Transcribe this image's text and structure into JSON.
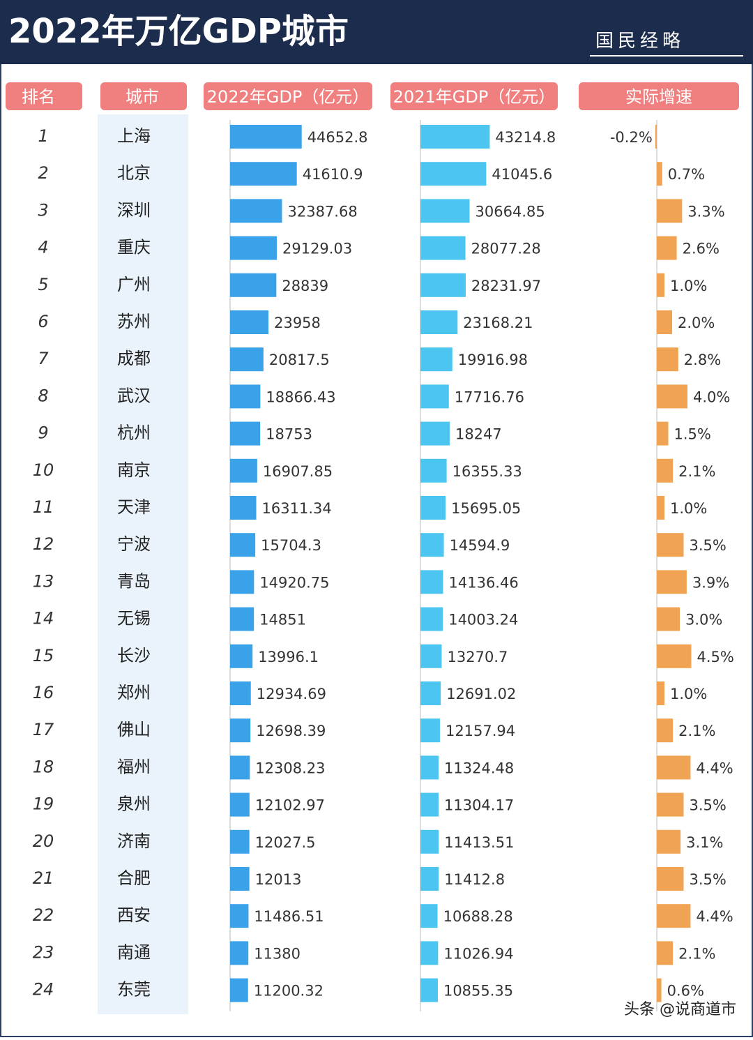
{
  "header": {
    "brand": "国民经略"
  },
  "footer": "头条 @说商道市",
  "chart_data": {
    "type": "bar",
    "orientation": "horizontal",
    "title": "2022年万亿GDP城市",
    "rank_header": "排名",
    "category_header": "城市",
    "ranks": [
      1,
      2,
      3,
      4,
      5,
      6,
      7,
      8,
      9,
      10,
      11,
      12,
      13,
      14,
      15,
      16,
      17,
      18,
      19,
      20,
      21,
      22,
      23,
      24
    ],
    "categories": [
      "上海",
      "北京",
      "深圳",
      "重庆",
      "广州",
      "苏州",
      "成都",
      "武汉",
      "杭州",
      "南京",
      "天津",
      "宁波",
      "青岛",
      "无锡",
      "长沙",
      "郑州",
      "佛山",
      "福州",
      "泉州",
      "济南",
      "合肥",
      "西安",
      "南通",
      "东莞"
    ],
    "series": [
      {
        "name": "2022年GDP（亿元）",
        "color": "#3aa2e9",
        "xlim": [
          0,
          100000
        ],
        "values": [
          44652.8,
          41610.9,
          32387.68,
          29129.03,
          28839,
          23958,
          20817.5,
          18866.43,
          18753,
          16907.85,
          16311.34,
          15704.3,
          14920.75,
          14851,
          13996.1,
          12934.69,
          12698.39,
          12308.23,
          12102.97,
          12027.5,
          12013,
          11486.51,
          11380,
          11200.32
        ]
      },
      {
        "name": "2021年GDP（亿元）",
        "color": "#4cc6f0",
        "xlim": [
          0,
          100000
        ],
        "values": [
          43214.8,
          41045.6,
          30664.85,
          28077.28,
          28231.97,
          23168.21,
          19916.98,
          17716.76,
          18247,
          16355.33,
          15695.05,
          14594.9,
          14136.46,
          14003.24,
          13270.7,
          12691.02,
          12157.94,
          11324.48,
          11304.17,
          11413.51,
          11412.8,
          10688.28,
          11026.94,
          10855.35
        ]
      },
      {
        "name": "实际增速",
        "color": "#f0a352",
        "xlim": [
          -1,
          10
        ],
        "values": [
          -0.2,
          0.7,
          3.3,
          2.6,
          1.0,
          2.0,
          2.8,
          4.0,
          1.5,
          2.1,
          1.0,
          3.5,
          3.9,
          3.0,
          4.5,
          1.0,
          2.1,
          4.4,
          3.5,
          3.1,
          3.5,
          4.4,
          2.1,
          0.6
        ],
        "value_labels": [
          "-0.2%",
          "0.7%",
          "3.3%",
          "2.6%",
          "1.0%",
          "2.0%",
          "2.8%",
          "4.0%",
          "1.5%",
          "2.1%",
          "1.0%",
          "3.5%",
          "3.9%",
          "3.0%",
          "4.5%",
          "1.0%",
          "2.1%",
          "4.4%",
          "3.5%",
          "3.1%",
          "3.5%",
          "4.4%",
          "2.1%",
          "0.6%"
        ]
      }
    ]
  }
}
